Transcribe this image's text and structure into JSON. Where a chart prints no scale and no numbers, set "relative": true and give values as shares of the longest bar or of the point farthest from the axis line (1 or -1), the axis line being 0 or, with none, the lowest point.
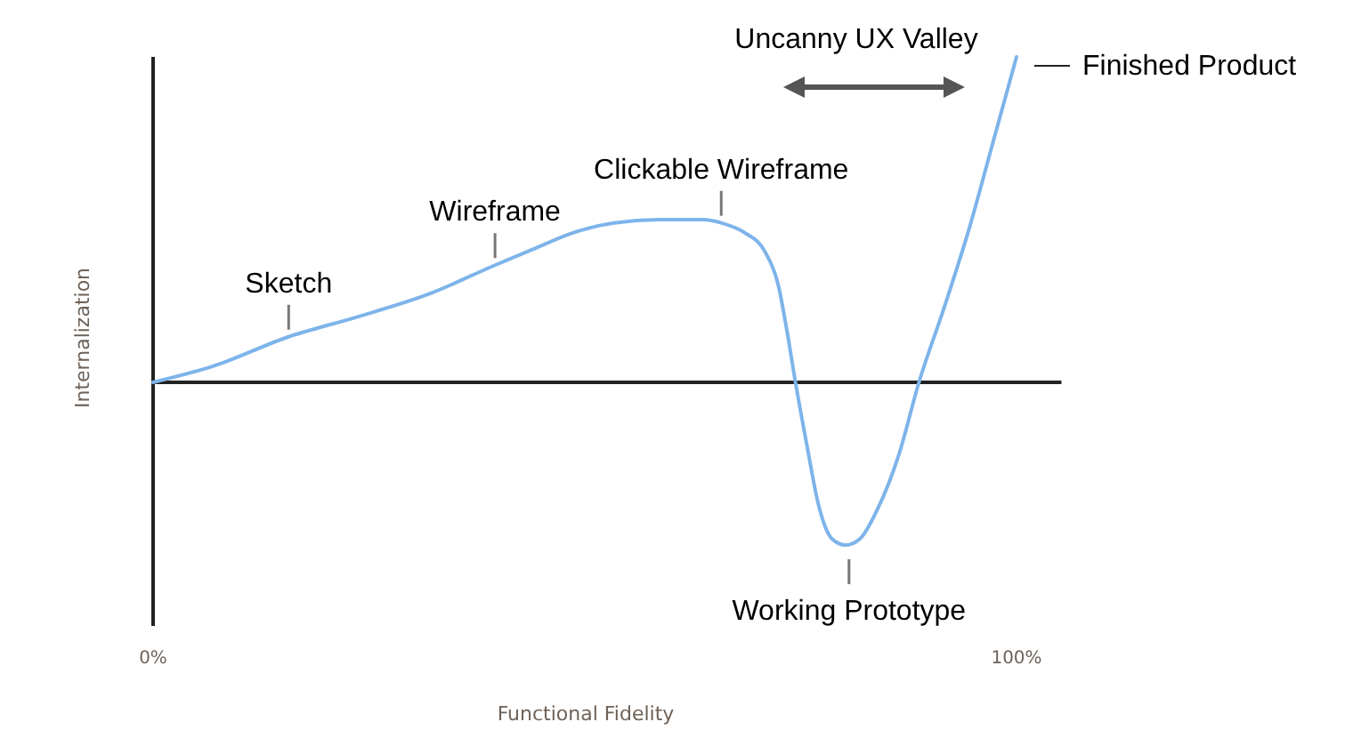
{
  "chart_data": {
    "type": "line",
    "relative": true,
    "xlabel": "Functional Fidelity",
    "ylabel": "Internalization",
    "xlim": [
      0,
      105.2
    ],
    "xticks": [
      {
        "value": 0,
        "label": "0%"
      },
      {
        "value": 100,
        "label": "100%"
      }
    ],
    "x": [
      0,
      7.0,
      15.7,
      23.5,
      31.8,
      39.6,
      44.1,
      48.7,
      53.4,
      58.6,
      63.7,
      65.8,
      68.5,
      70.9,
      72.4,
      73.4,
      74.4,
      75.7,
      77.1,
      78.6,
      80.2,
      81.9,
      83.9,
      86.4,
      88.7,
      91.5,
      94.6,
      97.3,
      100
    ],
    "series": [
      {
        "color": "#7db4ea",
        "values": [
          0,
          0.05,
          0.14,
          0.2,
          0.27,
          0.36,
          0.41,
          0.46,
          0.49,
          0.5,
          0.5,
          0.49,
          0.46,
          0.4,
          0.3,
          0.16,
          0,
          -0.19,
          -0.38,
          -0.48,
          -0.5,
          -0.48,
          -0.39,
          -0.22,
          0,
          0.22,
          0.48,
          0.74,
          1
        ]
      }
    ],
    "annotations": [
      {
        "text": "Sketch",
        "x": 15.7,
        "y": 0.14
      },
      {
        "text": "Wireframe",
        "x": 39.6,
        "y": 0.36
      },
      {
        "text": "Clickable Wireframe",
        "x": 65.8,
        "y": 0.49
      },
      {
        "text": "Working Prototype",
        "x": 80.6,
        "y": -0.5
      },
      {
        "text": "Finished Product",
        "x": 100,
        "y": 1
      },
      "Uncanny UX Valley"
    ],
    "grid": false,
    "marker": "none",
    "line_style": "solid"
  }
}
